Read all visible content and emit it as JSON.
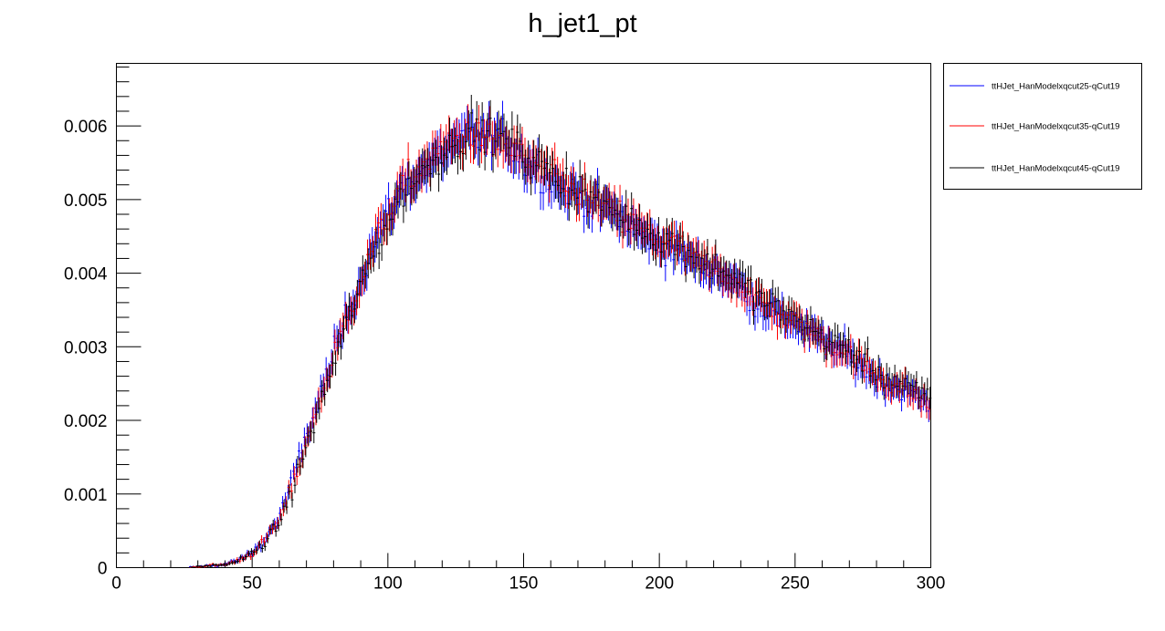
{
  "chart_data": {
    "type": "scatter",
    "title": "h_jet1_pt",
    "xlabel": "",
    "ylabel": "",
    "xlim": [
      0,
      300
    ],
    "ylim": [
      0,
      0.00685
    ],
    "x_ticks": [
      0,
      50,
      100,
      150,
      200,
      250,
      300
    ],
    "x_tick_labels": [
      "0",
      "50",
      "100",
      "150",
      "200",
      "250",
      "300"
    ],
    "y_ticks": [
      0,
      0.001,
      0.002,
      0.003,
      0.004,
      0.005,
      0.006
    ],
    "y_tick_labels": [
      "0",
      "0.001",
      "0.002",
      "0.003",
      "0.004",
      "0.005",
      "0.006"
    ],
    "bin_width": 1,
    "x_start": 26.5,
    "x_end": 300,
    "legend_position": "outside-top-right",
    "grid": false,
    "series": [
      {
        "name": "ttHJet_HanModelxqcut25-qCut19",
        "color": "#0000ff",
        "anchors": [
          [
            26.5,
            0.0
          ],
          [
            35,
            3e-05
          ],
          [
            40,
            4e-05
          ],
          [
            45,
            0.0001
          ],
          [
            50,
            0.0002
          ],
          [
            55,
            0.00038
          ],
          [
            60,
            0.00068
          ],
          [
            65,
            0.00118
          ],
          [
            70,
            0.00178
          ],
          [
            75,
            0.00232
          ],
          [
            80,
            0.00288
          ],
          [
            85,
            0.00342
          ],
          [
            90,
            0.0039
          ],
          [
            95,
            0.00442
          ],
          [
            100,
            0.00478
          ],
          [
            105,
            0.00512
          ],
          [
            110,
            0.0053
          ],
          [
            115,
            0.00545
          ],
          [
            120,
            0.00562
          ],
          [
            125,
            0.00572
          ],
          [
            130,
            0.00588
          ],
          [
            135,
            0.00584
          ],
          [
            140,
            0.00585
          ],
          [
            145,
            0.00574
          ],
          [
            150,
            0.00552
          ],
          [
            155,
            0.00542
          ],
          [
            160,
            0.00525
          ],
          [
            165,
            0.0051
          ],
          [
            170,
            0.0051
          ],
          [
            175,
            0.00492
          ],
          [
            180,
            0.00488
          ],
          [
            185,
            0.00478
          ],
          [
            190,
            0.00462
          ],
          [
            195,
            0.00448
          ],
          [
            200,
            0.00442
          ],
          [
            205,
            0.00432
          ],
          [
            210,
            0.00422
          ],
          [
            215,
            0.00408
          ],
          [
            220,
            0.00404
          ],
          [
            225,
            0.00395
          ],
          [
            230,
            0.00382
          ],
          [
            235,
            0.0036
          ],
          [
            240,
            0.00352
          ],
          [
            245,
            0.00338
          ],
          [
            250,
            0.00332
          ],
          [
            255,
            0.00322
          ],
          [
            260,
            0.00305
          ],
          [
            265,
            0.00298
          ],
          [
            270,
            0.00288
          ],
          [
            275,
            0.00272
          ],
          [
            280,
            0.00258
          ],
          [
            285,
            0.00248
          ],
          [
            290,
            0.0024
          ],
          [
            295,
            0.00232
          ],
          [
            300,
            0.0022
          ]
        ]
      },
      {
        "name": "ttHJet_HanModelxqcut35-qCut19",
        "color": "#ff0000",
        "anchors": [
          [
            26.5,
            0.0
          ],
          [
            35,
            3e-05
          ],
          [
            40,
            4e-05
          ],
          [
            45,
            0.0001
          ],
          [
            50,
            0.0002
          ],
          [
            55,
            0.00038
          ],
          [
            60,
            0.00064
          ],
          [
            65,
            0.00112
          ],
          [
            70,
            0.00172
          ],
          [
            75,
            0.00228
          ],
          [
            80,
            0.00285
          ],
          [
            85,
            0.0034
          ],
          [
            90,
            0.00388
          ],
          [
            95,
            0.0044
          ],
          [
            100,
            0.0048
          ],
          [
            105,
            0.00515
          ],
          [
            110,
            0.00535
          ],
          [
            115,
            0.00552
          ],
          [
            120,
            0.0057
          ],
          [
            125,
            0.0058
          ],
          [
            130,
            0.0059
          ],
          [
            135,
            0.00582
          ],
          [
            140,
            0.00578
          ],
          [
            145,
            0.0057
          ],
          [
            150,
            0.00556
          ],
          [
            155,
            0.00545
          ],
          [
            160,
            0.0053
          ],
          [
            165,
            0.00518
          ],
          [
            170,
            0.00512
          ],
          [
            175,
            0.00498
          ],
          [
            180,
            0.00488
          ],
          [
            185,
            0.00478
          ],
          [
            190,
            0.00468
          ],
          [
            195,
            0.00455
          ],
          [
            200,
            0.00445
          ],
          [
            205,
            0.00438
          ],
          [
            210,
            0.00428
          ],
          [
            215,
            0.00412
          ],
          [
            220,
            0.00405
          ],
          [
            225,
            0.00396
          ],
          [
            230,
            0.00386
          ],
          [
            235,
            0.00365
          ],
          [
            240,
            0.00355
          ],
          [
            245,
            0.00342
          ],
          [
            250,
            0.00334
          ],
          [
            255,
            0.00324
          ],
          [
            260,
            0.00308
          ],
          [
            265,
            0.003
          ],
          [
            270,
            0.0029
          ],
          [
            275,
            0.00275
          ],
          [
            280,
            0.00262
          ],
          [
            285,
            0.00252
          ],
          [
            290,
            0.00242
          ],
          [
            295,
            0.00232
          ],
          [
            300,
            0.00215
          ]
        ]
      },
      {
        "name": "ttHJet_HanModelxqcut45-qCut19",
        "color": "#000000",
        "anchors": [
          [
            26.5,
            0.0
          ],
          [
            35,
            3e-05
          ],
          [
            40,
            4e-05
          ],
          [
            45,
            0.0001
          ],
          [
            50,
            0.0002
          ],
          [
            55,
            0.00036
          ],
          [
            60,
            0.00062
          ],
          [
            65,
            0.0011
          ],
          [
            70,
            0.00168
          ],
          [
            75,
            0.00222
          ],
          [
            80,
            0.0028
          ],
          [
            85,
            0.00335
          ],
          [
            90,
            0.00385
          ],
          [
            95,
            0.00432
          ],
          [
            100,
            0.00472
          ],
          [
            105,
            0.00508
          ],
          [
            110,
            0.00528
          ],
          [
            115,
            0.00548
          ],
          [
            120,
            0.00565
          ],
          [
            125,
            0.00578
          ],
          [
            130,
            0.00592
          ],
          [
            135,
            0.00588
          ],
          [
            140,
            0.00585
          ],
          [
            145,
            0.00578
          ],
          [
            150,
            0.0056
          ],
          [
            155,
            0.0055
          ],
          [
            160,
            0.00535
          ],
          [
            165,
            0.00522
          ],
          [
            170,
            0.00515
          ],
          [
            175,
            0.005
          ],
          [
            180,
            0.0049
          ],
          [
            185,
            0.0048
          ],
          [
            190,
            0.0047
          ],
          [
            195,
            0.00458
          ],
          [
            200,
            0.00448
          ],
          [
            205,
            0.00442
          ],
          [
            210,
            0.0043
          ],
          [
            215,
            0.00418
          ],
          [
            220,
            0.0041
          ],
          [
            225,
            0.004
          ],
          [
            230,
            0.0039
          ],
          [
            235,
            0.0037
          ],
          [
            240,
            0.0036
          ],
          [
            245,
            0.00348
          ],
          [
            250,
            0.00338
          ],
          [
            255,
            0.00328
          ],
          [
            260,
            0.00312
          ],
          [
            265,
            0.00305
          ],
          [
            270,
            0.00295
          ],
          [
            275,
            0.0028
          ],
          [
            280,
            0.00266
          ],
          [
            285,
            0.00256
          ],
          [
            290,
            0.00246
          ],
          [
            295,
            0.00238
          ],
          [
            300,
            0.00232
          ]
        ]
      }
    ]
  }
}
